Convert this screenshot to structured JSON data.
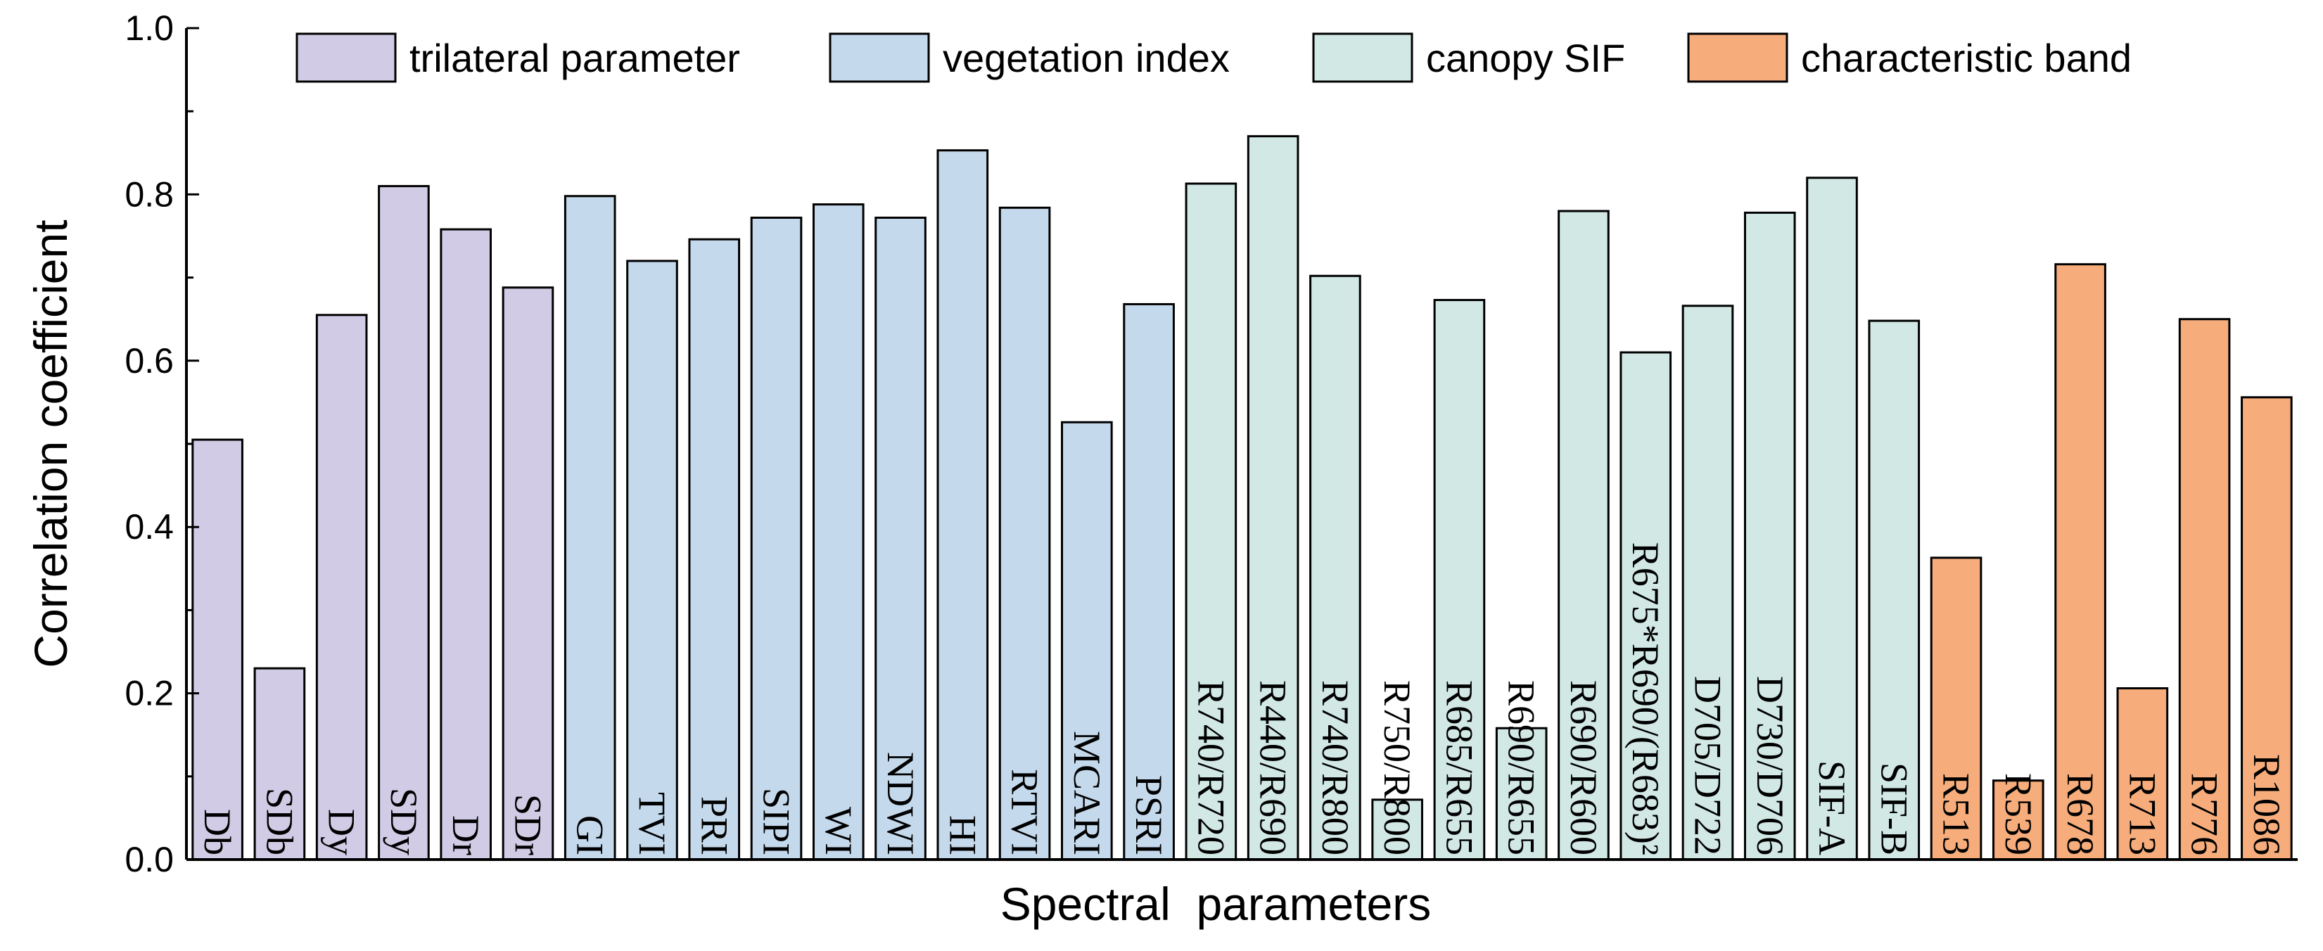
{
  "chart_data": {
    "type": "bar",
    "title": "",
    "xlabel": "Spectral  parameters",
    "ylabel": "Correlation coefficient",
    "ylim": [
      0,
      1.0
    ],
    "yticks": [
      "0.0",
      "0.2",
      "0.4",
      "0.6",
      "0.8",
      "1.0"
    ],
    "grid": false,
    "legend_position": "top",
    "series": [
      {
        "name": "trilateral parameter",
        "color": "#d1cbe5"
      },
      {
        "name": "vegetation index",
        "color": "#c5d9ec"
      },
      {
        "name": "canopy SIF",
        "color": "#d1e8e4"
      },
      {
        "name": "characteristic band",
        "color": "#f6ad7b"
      }
    ],
    "categories": [
      "Db",
      "SDb",
      "Dy",
      "SDy",
      "Dr",
      "SDr",
      "GI",
      "TVI",
      "PRI",
      "SIPI",
      "WI",
      "NDWI",
      "HI",
      "RTVI",
      "MCARI",
      "PSRI",
      "R740/R720",
      "R440/R690",
      "R740/R800",
      "R750/R800",
      "R685/R655",
      "R690/R655",
      "R690/R600",
      "R675*R690/(R683)²",
      "D705/D722",
      "D730/D706",
      "SIF-A",
      "SIF-B",
      "R513",
      "R539",
      "R678",
      "R713",
      "R776",
      "R1086"
    ],
    "values": [
      0.505,
      0.23,
      0.655,
      0.81,
      0.758,
      0.688,
      0.798,
      0.72,
      0.746,
      0.772,
      0.788,
      0.772,
      0.853,
      0.784,
      0.526,
      0.668,
      0.813,
      0.87,
      0.702,
      0.072,
      0.673,
      0.158,
      0.78,
      0.61,
      0.666,
      0.778,
      0.82,
      0.648,
      0.363,
      0.095,
      0.716,
      0.206,
      0.65,
      0.556
    ],
    "groups": [
      "trilateral parameter",
      "trilateral parameter",
      "trilateral parameter",
      "trilateral parameter",
      "trilateral parameter",
      "trilateral parameter",
      "vegetation index",
      "vegetation index",
      "vegetation index",
      "vegetation index",
      "vegetation index",
      "vegetation index",
      "vegetation index",
      "vegetation index",
      "vegetation index",
      "vegetation index",
      "canopy SIF",
      "canopy SIF",
      "canopy SIF",
      "canopy SIF",
      "canopy SIF",
      "canopy SIF",
      "canopy SIF",
      "canopy SIF",
      "canopy SIF",
      "canopy SIF",
      "canopy SIF",
      "canopy SIF",
      "characteristic band",
      "characteristic band",
      "characteristic band",
      "characteristic band",
      "characteristic band",
      "characteristic band"
    ]
  }
}
